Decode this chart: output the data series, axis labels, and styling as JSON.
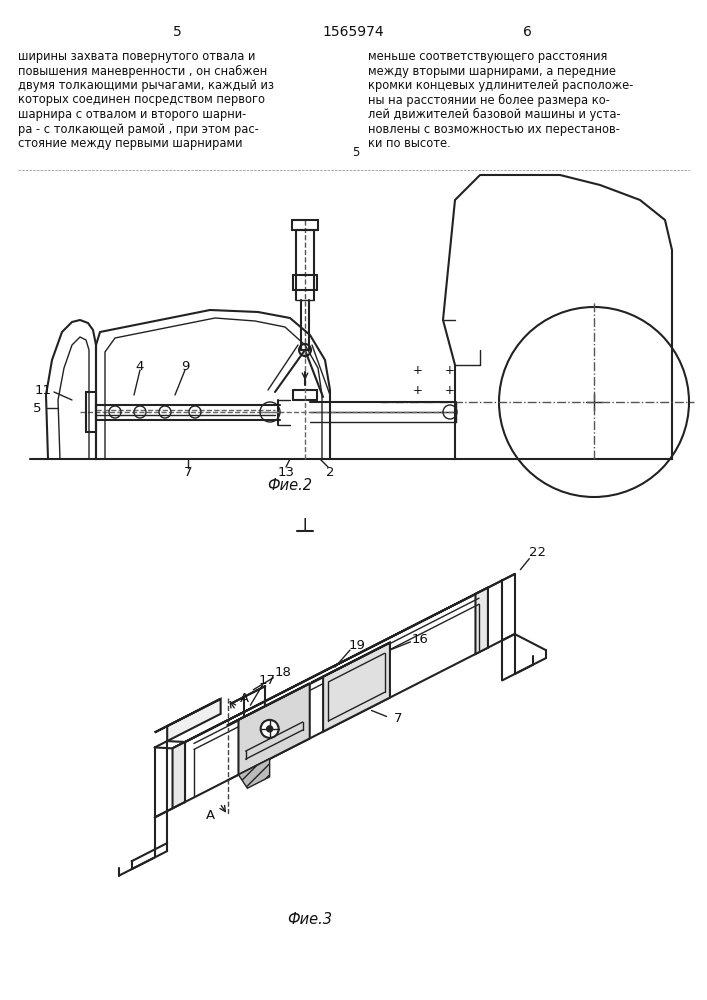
{
  "title": "1565974",
  "page_left": "5",
  "page_right": "6",
  "text_left": "ширины захвата повернутого отвала и\nповышения маневренности , он снабжен\nдвумя толкающими рычагами, каждый из\nкоторых соединен посредством первого\nшарнира с отвалом и второго шарни-\nра - с толкающей рамой , при этом рас-\nстояние между первыми шарнирами",
  "text_right": "меньше соответствующего расстояния\nмежду вторыми шарнирами, а передние\nкромки концевых удлинителей расположе-\nны на расстоянии не более размера ко-\nлей движителей базовой машины и уста-\nновлены с возможностью их перестанов-\nки по высоте.",
  "fig2_caption": "Фие.2",
  "fig3_caption": "Фие.3",
  "fig3_label": "I",
  "bg_color": "#ffffff",
  "line_color": "#222222",
  "text_color": "#111111",
  "font_size_text": 8.3,
  "font_size_caption": 10.5,
  "font_size_page": 10,
  "font_size_label": 9.5
}
